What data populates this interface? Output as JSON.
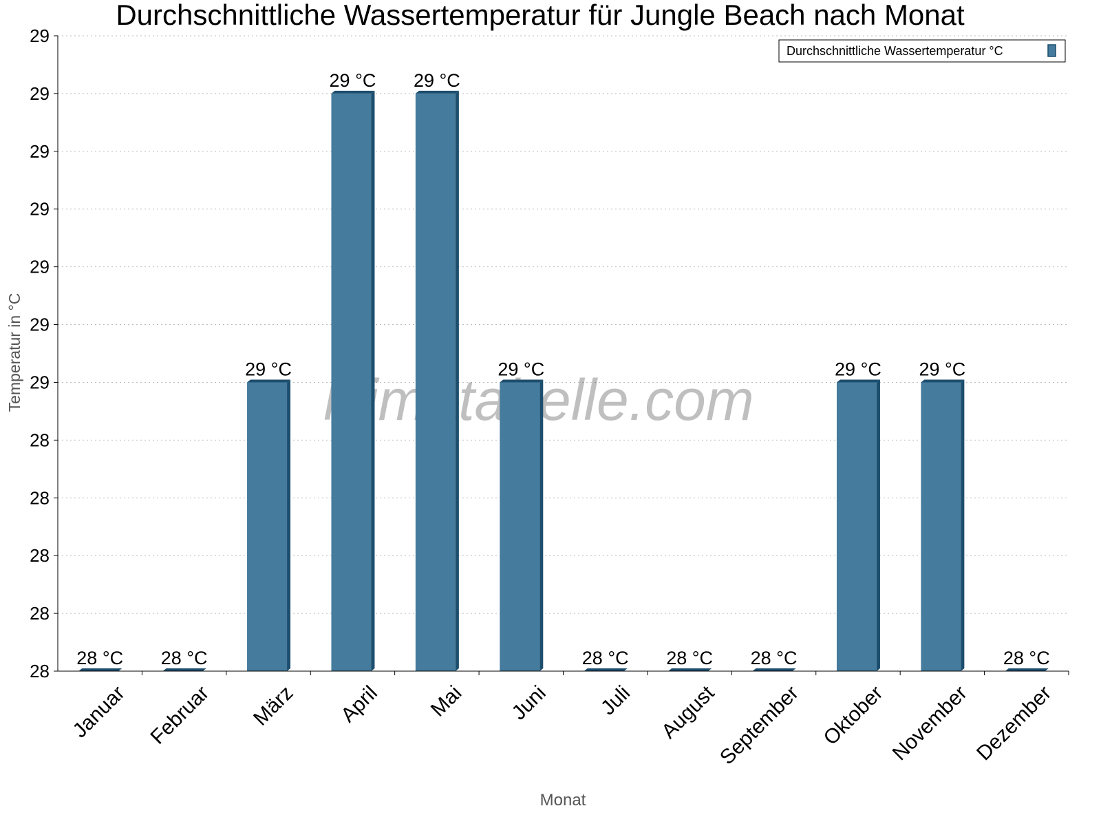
{
  "chart_data": {
    "type": "bar",
    "title": "Durchschnittliche Wassertemperatur für Jungle Beach nach Monat",
    "xlabel": "Monat",
    "ylabel": "Temperatur in °C",
    "categories": [
      "Januar",
      "Februar",
      "März",
      "April",
      "Mai",
      "Juni",
      "Juli",
      "August",
      "September",
      "Oktober",
      "November",
      "Dezember"
    ],
    "series": [
      {
        "name": "Durchschnittliche Wassertemperatur °C",
        "values": [
          28.0,
          28.0,
          28.5,
          29.0,
          29.0,
          28.5,
          28.0,
          28.0,
          28.0,
          28.5,
          28.5,
          28.0
        ],
        "labels": [
          "28 °C",
          "28 °C",
          "29 °C",
          "29 °C",
          "29 °C",
          "29 °C",
          "28 °C",
          "28 °C",
          "28 °C",
          "29 °C",
          "29 °C",
          "28 °C"
        ]
      }
    ],
    "ylim": [
      28.0,
      29.1
    ],
    "yticks": [
      28.0,
      28.1,
      28.2,
      28.3,
      28.4,
      28.5,
      28.6,
      28.7,
      28.8,
      28.9,
      29.0,
      29.1
    ],
    "ytick_labels": [
      "28",
      "28",
      "28",
      "28",
      "28",
      "29",
      "29",
      "29",
      "29",
      "29",
      "29",
      "29"
    ],
    "grid": true,
    "legend_position": "top-right",
    "colors": {
      "bar": "#457b9d",
      "bar_side": "#1d4e6e",
      "grid": "#bbbbbb"
    },
    "watermark": "klimatabelle.com"
  }
}
